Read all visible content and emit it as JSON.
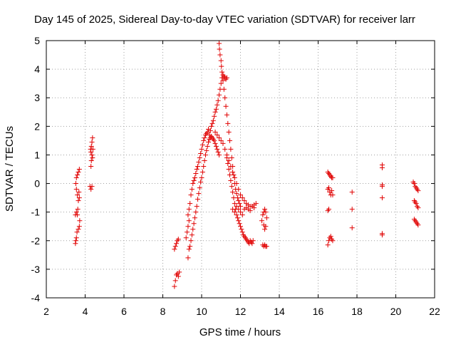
{
  "chart_data": {
    "type": "scatter",
    "title": "Day 145 of 2025, Sidereal Day-to-day VTEC variation (SDTVAR) for receiver larr",
    "xlabel": "GPS time / hours",
    "ylabel": "SDTVAR / TECUs",
    "xlim": [
      2,
      22
    ],
    "ylim": [
      -4,
      5
    ],
    "xticks": [
      2,
      4,
      6,
      8,
      10,
      12,
      14,
      16,
      18,
      20,
      22
    ],
    "yticks": [
      -4,
      -3,
      -2,
      -1,
      0,
      1,
      2,
      3,
      4,
      5
    ],
    "grid": true,
    "marker": "+",
    "color": "#e00000",
    "series": [
      {
        "name": "SDTVAR",
        "points": [
          [
            3.5,
            -2.1
          ],
          [
            3.52,
            -2.0
          ],
          [
            3.55,
            -1.9
          ],
          [
            3.58,
            -1.7
          ],
          [
            3.5,
            -1.1
          ],
          [
            3.55,
            -1.0
          ],
          [
            3.6,
            -1.1
          ],
          [
            3.62,
            -0.9
          ],
          [
            3.65,
            -0.6
          ],
          [
            3.6,
            -0.4
          ],
          [
            3.55,
            -0.2
          ],
          [
            3.52,
            0.0
          ],
          [
            3.55,
            0.2
          ],
          [
            3.6,
            0.3
          ],
          [
            3.65,
            0.4
          ],
          [
            3.7,
            0.5
          ],
          [
            3.68,
            -0.3
          ],
          [
            3.7,
            -0.5
          ],
          [
            3.72,
            -1.3
          ],
          [
            3.7,
            -1.5
          ],
          [
            3.65,
            -1.6
          ],
          [
            4.25,
            -0.1
          ],
          [
            4.3,
            -0.2
          ],
          [
            4.35,
            -0.1
          ],
          [
            4.3,
            0.6
          ],
          [
            4.32,
            0.8
          ],
          [
            4.35,
            1.0
          ],
          [
            4.3,
            1.1
          ],
          [
            4.28,
            1.2
          ],
          [
            4.32,
            1.3
          ],
          [
            4.35,
            1.45
          ],
          [
            4.38,
            1.6
          ],
          [
            4.4,
            1.2
          ],
          [
            4.38,
            0.9
          ],
          [
            8.6,
            -3.6
          ],
          [
            8.65,
            -3.4
          ],
          [
            8.7,
            -3.2
          ],
          [
            8.75,
            -3.15
          ],
          [
            8.8,
            -3.25
          ],
          [
            8.85,
            -3.1
          ],
          [
            8.6,
            -2.3
          ],
          [
            8.65,
            -2.2
          ],
          [
            8.7,
            -2.1
          ],
          [
            8.75,
            -2.0
          ],
          [
            8.8,
            -1.95
          ],
          [
            9.2,
            -1.9
          ],
          [
            9.25,
            -1.7
          ],
          [
            9.3,
            -1.5
          ],
          [
            9.35,
            -1.3
          ],
          [
            9.3,
            -1.1
          ],
          [
            9.35,
            -0.9
          ],
          [
            9.4,
            -0.7
          ],
          [
            9.45,
            -0.4
          ],
          [
            9.5,
            -0.2
          ],
          [
            9.55,
            0.0
          ],
          [
            9.6,
            0.1
          ],
          [
            9.65,
            0.2
          ],
          [
            9.7,
            0.35
          ],
          [
            9.75,
            0.5
          ],
          [
            9.8,
            0.6
          ],
          [
            9.85,
            0.75
          ],
          [
            9.9,
            0.9
          ],
          [
            9.95,
            1.05
          ],
          [
            10.0,
            1.2
          ],
          [
            10.05,
            1.35
          ],
          [
            10.1,
            1.5
          ],
          [
            10.15,
            1.6
          ],
          [
            10.2,
            1.7
          ],
          [
            10.25,
            1.75
          ],
          [
            10.3,
            1.8
          ],
          [
            10.35,
            1.9
          ],
          [
            9.3,
            -2.6
          ],
          [
            9.35,
            -2.3
          ],
          [
            9.4,
            -2.2
          ],
          [
            9.45,
            -2.0
          ],
          [
            9.5,
            -1.8
          ],
          [
            9.55,
            -1.6
          ],
          [
            9.6,
            -1.4
          ],
          [
            9.65,
            -1.2
          ],
          [
            9.7,
            -1.0
          ],
          [
            9.75,
            -0.8
          ],
          [
            9.8,
            -0.55
          ],
          [
            9.85,
            -0.35
          ],
          [
            9.9,
            -0.15
          ],
          [
            9.95,
            0.05
          ],
          [
            10.0,
            0.2
          ],
          [
            10.05,
            0.4
          ],
          [
            10.1,
            0.6
          ],
          [
            10.15,
            0.8
          ],
          [
            10.2,
            1.0
          ],
          [
            10.25,
            1.15
          ],
          [
            10.3,
            1.3
          ],
          [
            10.35,
            1.45
          ],
          [
            10.4,
            1.55
          ],
          [
            10.45,
            1.6
          ],
          [
            10.5,
            1.65
          ],
          [
            10.55,
            1.6
          ],
          [
            10.6,
            1.55
          ],
          [
            10.65,
            1.5
          ],
          [
            10.7,
            1.4
          ],
          [
            10.75,
            1.3
          ],
          [
            10.8,
            1.2
          ],
          [
            10.85,
            1.1
          ],
          [
            10.9,
            1.0
          ],
          [
            10.4,
            1.7
          ],
          [
            10.45,
            1.85
          ],
          [
            10.5,
            2.0
          ],
          [
            10.55,
            2.1
          ],
          [
            10.6,
            2.2
          ],
          [
            10.65,
            2.35
          ],
          [
            10.7,
            2.5
          ],
          [
            10.75,
            2.6
          ],
          [
            10.8,
            2.75
          ],
          [
            10.85,
            2.9
          ],
          [
            10.9,
            3.1
          ],
          [
            10.95,
            3.3
          ],
          [
            11.0,
            3.5
          ],
          [
            11.05,
            3.7
          ],
          [
            11.1,
            3.8
          ],
          [
            11.15,
            3.75
          ],
          [
            11.2,
            3.7
          ],
          [
            11.25,
            3.65
          ],
          [
            11.3,
            3.7
          ],
          [
            10.9,
            4.9
          ],
          [
            10.92,
            4.7
          ],
          [
            10.95,
            4.5
          ],
          [
            11.0,
            4.3
          ],
          [
            11.02,
            4.1
          ],
          [
            11.05,
            3.9
          ],
          [
            11.1,
            3.6
          ],
          [
            11.15,
            3.3
          ],
          [
            11.2,
            3.0
          ],
          [
            11.25,
            2.7
          ],
          [
            11.3,
            2.4
          ],
          [
            11.35,
            2.1
          ],
          [
            11.4,
            1.8
          ],
          [
            11.45,
            1.5
          ],
          [
            11.5,
            1.2
          ],
          [
            11.55,
            0.9
          ],
          [
            11.6,
            0.6
          ],
          [
            11.65,
            0.3
          ],
          [
            11.7,
            0.0
          ],
          [
            11.75,
            -0.2
          ],
          [
            11.8,
            -0.35
          ],
          [
            11.85,
            -0.5
          ],
          [
            11.9,
            -0.6
          ],
          [
            11.95,
            -0.7
          ],
          [
            12.0,
            -0.8
          ],
          [
            10.7,
            1.8
          ],
          [
            10.8,
            1.7
          ],
          [
            10.9,
            1.6
          ],
          [
            11.0,
            1.5
          ],
          [
            11.1,
            1.4
          ],
          [
            11.2,
            1.2
          ],
          [
            11.3,
            1.0
          ],
          [
            11.4,
            0.8
          ],
          [
            11.5,
            0.6
          ],
          [
            11.6,
            0.4
          ],
          [
            11.7,
            0.2
          ],
          [
            11.8,
            0.0
          ],
          [
            11.9,
            -0.2
          ],
          [
            12.0,
            -0.4
          ],
          [
            12.1,
            -0.5
          ],
          [
            12.2,
            -0.6
          ],
          [
            12.3,
            -0.7
          ],
          [
            12.4,
            -0.75
          ],
          [
            12.5,
            -0.8
          ],
          [
            12.6,
            -0.8
          ],
          [
            12.7,
            -0.75
          ],
          [
            12.8,
            -0.7
          ],
          [
            11.3,
            0.9
          ],
          [
            11.35,
            0.7
          ],
          [
            11.4,
            0.5
          ],
          [
            11.45,
            0.3
          ],
          [
            11.5,
            0.1
          ],
          [
            11.55,
            -0.1
          ],
          [
            11.6,
            -0.3
          ],
          [
            11.65,
            -0.5
          ],
          [
            11.7,
            -0.7
          ],
          [
            11.75,
            -0.9
          ],
          [
            11.8,
            -1.1
          ],
          [
            11.85,
            -1.2
          ],
          [
            11.9,
            -1.3
          ],
          [
            11.95,
            -1.4
          ],
          [
            12.0,
            -1.5
          ],
          [
            12.05,
            -1.6
          ],
          [
            12.1,
            -1.7
          ],
          [
            12.15,
            -1.8
          ],
          [
            12.2,
            -1.85
          ],
          [
            12.25,
            -1.9
          ],
          [
            12.3,
            -1.95
          ],
          [
            12.35,
            -2.0
          ],
          [
            12.4,
            -2.05
          ],
          [
            12.45,
            -2.1
          ],
          [
            12.5,
            -2.0
          ],
          [
            12.55,
            -2.05
          ],
          [
            12.6,
            -2.1
          ],
          [
            12.65,
            -2.0
          ],
          [
            11.6,
            -0.9
          ],
          [
            11.7,
            -1.0
          ],
          [
            11.8,
            -0.8
          ],
          [
            11.9,
            -0.9
          ],
          [
            12.0,
            -1.0
          ],
          [
            12.1,
            -1.1
          ],
          [
            12.2,
            -0.9
          ],
          [
            12.3,
            -0.85
          ],
          [
            12.4,
            -0.9
          ],
          [
            12.5,
            -0.95
          ],
          [
            12.6,
            -0.8
          ],
          [
            12.7,
            -0.85
          ],
          [
            13.1,
            -1.3
          ],
          [
            13.15,
            -1.1
          ],
          [
            13.2,
            -1.0
          ],
          [
            13.25,
            -0.9
          ],
          [
            13.3,
            -1.0
          ],
          [
            13.35,
            -1.2
          ],
          [
            13.3,
            -1.5
          ],
          [
            13.25,
            -1.6
          ],
          [
            13.2,
            -1.45
          ],
          [
            13.15,
            -2.15
          ],
          [
            13.2,
            -2.2
          ],
          [
            13.25,
            -2.15
          ],
          [
            13.3,
            -2.2
          ],
          [
            13.35,
            -2.2
          ],
          [
            16.5,
            -2.15
          ],
          [
            16.55,
            -2.0
          ],
          [
            16.5,
            -0.95
          ],
          [
            16.55,
            -0.9
          ],
          [
            16.5,
            -0.2
          ],
          [
            16.55,
            -0.15
          ],
          [
            16.6,
            -0.3
          ],
          [
            16.65,
            -0.4
          ],
          [
            16.7,
            -0.25
          ],
          [
            16.75,
            -0.4
          ],
          [
            16.5,
            0.4
          ],
          [
            16.55,
            0.35
          ],
          [
            16.6,
            0.3
          ],
          [
            16.65,
            0.25
          ],
          [
            16.7,
            0.2
          ],
          [
            16.75,
            0.2
          ],
          [
            16.6,
            -1.9
          ],
          [
            16.65,
            -1.85
          ],
          [
            16.7,
            -1.95
          ],
          [
            16.75,
            -2.0
          ],
          [
            17.75,
            -0.3
          ],
          [
            17.75,
            -0.9
          ],
          [
            17.75,
            -1.55
          ],
          [
            19.3,
            0.65
          ],
          [
            19.3,
            0.55
          ],
          [
            19.3,
            -0.1
          ],
          [
            19.3,
            -0.05
          ],
          [
            19.3,
            -0.5
          ],
          [
            19.3,
            -1.75
          ],
          [
            19.3,
            -1.8
          ],
          [
            20.9,
            0.05
          ],
          [
            20.95,
            0.0
          ],
          [
            21.0,
            -0.1
          ],
          [
            21.05,
            -0.15
          ],
          [
            21.1,
            -0.2
          ],
          [
            21.15,
            -0.25
          ],
          [
            20.95,
            -0.6
          ],
          [
            21.0,
            -0.65
          ],
          [
            21.05,
            -0.7
          ],
          [
            21.1,
            -0.8
          ],
          [
            21.15,
            -0.85
          ],
          [
            20.95,
            -1.25
          ],
          [
            21.0,
            -1.3
          ],
          [
            21.05,
            -1.35
          ],
          [
            21.1,
            -1.4
          ],
          [
            21.15,
            -1.45
          ]
        ]
      }
    ]
  }
}
